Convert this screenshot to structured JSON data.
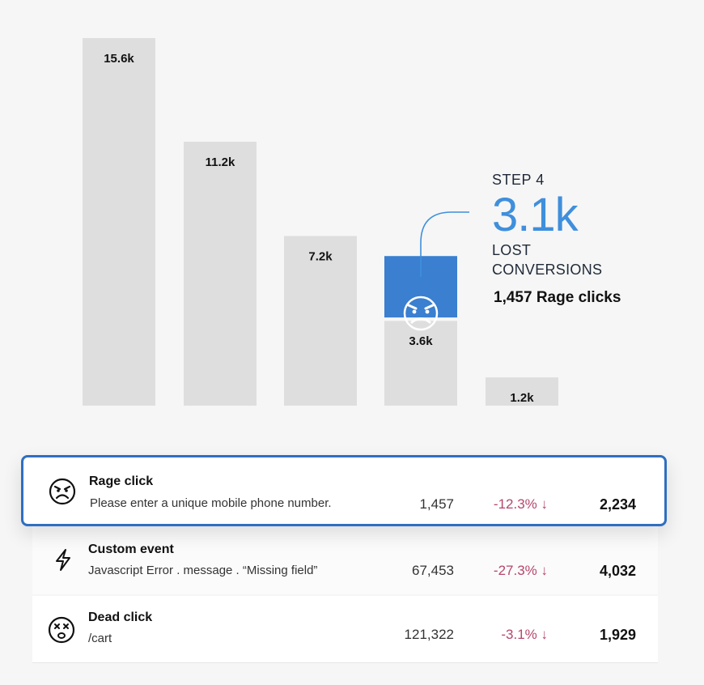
{
  "chart_data": {
    "type": "bar",
    "categories": [
      "",
      "",
      "",
      "",
      ""
    ],
    "values": [
      15.6,
      11.2,
      7.2,
      3.6,
      1.2
    ],
    "value_labels": [
      "15.6k",
      "11.2k",
      "7.2k",
      "3.6k",
      "1.2k"
    ],
    "lost_segment": {
      "bar_index": 3,
      "value": 3.1
    },
    "ylim": [
      0,
      15.6
    ],
    "grid": false,
    "colors": {
      "bar": "#dedede",
      "lost": "#3a7fd0",
      "accent": "#3f8fdc"
    }
  },
  "callout": {
    "step": "STEP 4",
    "value": "3.1k",
    "line1": "LOST",
    "line2": "CONVERSIONS",
    "rage": "1,457 Rage clicks"
  },
  "rows": [
    {
      "icon": "angry-face-icon",
      "title": "Rage click",
      "subtitle": "Please enter a unique mobile phone number.",
      "count": "1,457",
      "change": "-12.3% ↓",
      "total": "2,234"
    },
    {
      "icon": "lightning-icon",
      "title": "Custom event",
      "subtitle": "Javascript Error . message . “Missing field”",
      "count": "67,453",
      "change": "-27.3% ↓",
      "total": "4,032"
    },
    {
      "icon": "dead-face-icon",
      "title": "Dead click",
      "subtitle": "/cart",
      "count": "121,322",
      "change": "-3.1% ↓",
      "total": "1,929"
    }
  ]
}
